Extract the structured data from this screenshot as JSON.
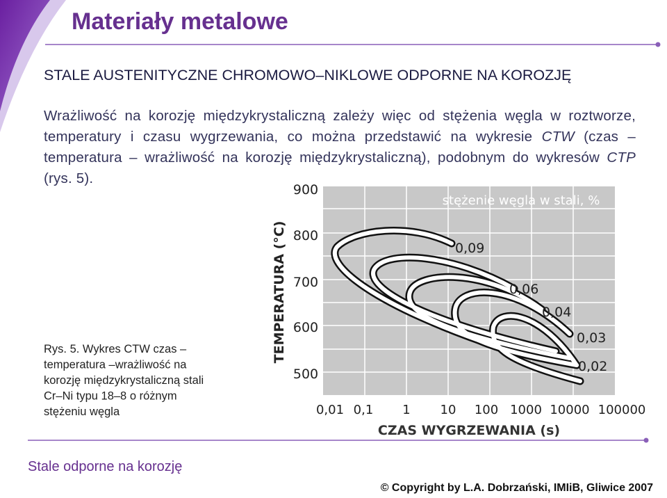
{
  "header": {
    "title": "Materiały metalowe"
  },
  "heading": "STALE AUSTENITYCZNE CHROMOWO–NIKLOWE ODPORNE NA KOROZJĘ",
  "paragraph": [
    "Wrażliwość na korozję międzykrystaliczną zależy więc od stężenia węgla w roztworze, temperatury i czasu wygrzewania, co można przedstawić na wykresie ",
    "CTW",
    " (czas – temperatura – wrażliwość na korozję międzykrystaliczną), podobnym do wykresów ",
    "CTP",
    " (rys. 5)."
  ],
  "figure": {
    "y_axis_title": "TEMPERATURA (°C)",
    "x_axis_title": "CZAS WYGRZEWANIA (s)",
    "legend_title": "stężenie węgla w stali, %",
    "y_ticks": [
      "900",
      "800",
      "700",
      "600",
      "500"
    ],
    "x_ticks": [
      "0,01",
      "0,1",
      "1",
      "10",
      "100",
      "1000",
      "10000",
      "100000"
    ],
    "curve_labels": [
      "0,09",
      "0,06",
      "0,04",
      "0,03",
      "0,02"
    ]
  },
  "caption": [
    "Rys. 5. Wykres CTW czas –",
    "temperatura –wrażliwość na",
    "korozję międzykrystaliczną stali",
    "Cr–Ni typu 18–8 o różnym",
    "stężeniu węgla"
  ],
  "footer": {
    "left": "Stale odporne na korozję",
    "right": "© Copyright by L.A. Dobrzański, IMIiB, Gliwice 2007"
  }
}
